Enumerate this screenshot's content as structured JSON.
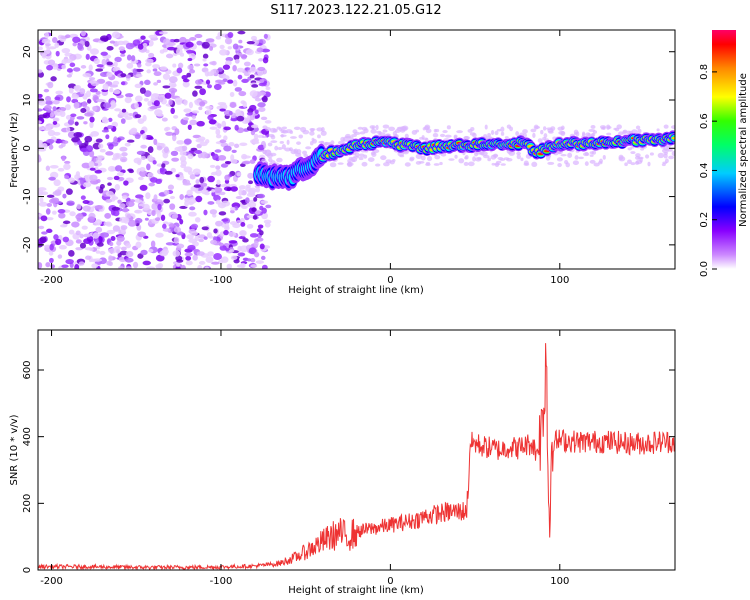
{
  "chart_data": [
    {
      "type": "heatmap",
      "title": "S117.2023.122.21.05.G12",
      "xlabel": "Height of straight line (km)",
      "ylabel": "Frequency (Hz)",
      "xlim": [
        -208,
        168
      ],
      "ylim": [
        -25,
        24.5
      ],
      "x_ticks": [
        -200,
        -100,
        0,
        100
      ],
      "y_ticks": [
        -20,
        -10,
        0,
        10,
        20
      ],
      "colorbar": {
        "label": "Normalized spectral amplitude",
        "range": [
          0,
          0.97
        ],
        "ticks": [
          "0.0",
          "0.2",
          "0.4",
          "0.6",
          "0.8"
        ],
        "colormap": [
          "#ffffff",
          "#9900ff",
          "#0000ff",
          "#00ffff",
          "#00ff00",
          "#ffff00",
          "#ff0000",
          "#ff0066"
        ]
      },
      "description_points": {
        "noise_region_x": [
          -208,
          -78
        ],
        "noise_frequency_range": [
          -25,
          24
        ],
        "signal_track": [
          [
            -78,
            -5
          ],
          [
            -70,
            -6
          ],
          [
            -60,
            -6
          ],
          [
            -50,
            -4
          ],
          [
            -40,
            -1.5
          ],
          [
            -30,
            -0.5
          ],
          [
            -20,
            0.5
          ],
          [
            -10,
            1
          ],
          [
            0,
            1
          ],
          [
            20,
            0
          ],
          [
            40,
            0.5
          ],
          [
            60,
            1
          ],
          [
            80,
            1
          ],
          [
            86,
            -1
          ],
          [
            100,
            1
          ],
          [
            120,
            1
          ],
          [
            140,
            1.5
          ],
          [
            160,
            2
          ],
          [
            168,
            2
          ]
        ]
      }
    },
    {
      "type": "line",
      "xlabel": "Height of straight line (km)",
      "ylabel": "SNR (10 * v/v)",
      "xlim": [
        -208,
        168
      ],
      "ylim": [
        0,
        720
      ],
      "x_ticks": [
        -200,
        -100,
        0,
        100
      ],
      "y_ticks": [
        0,
        200,
        400,
        600
      ],
      "series": [
        {
          "color": "#ee3333",
          "x": [
            -208,
            -180,
            -150,
            -120,
            -100,
            -80,
            -65,
            -55,
            -45,
            -35,
            -30,
            -25,
            -20,
            -15,
            -10,
            -5,
            0,
            5,
            10,
            15,
            20,
            25,
            30,
            35,
            40,
            45,
            46,
            47,
            50,
            55,
            60,
            65,
            70,
            75,
            80,
            84,
            86,
            88,
            90,
            91,
            92,
            93,
            94,
            95,
            96,
            98,
            100,
            110,
            120,
            130,
            140,
            150,
            160,
            168
          ],
          "y": [
            10,
            10,
            8,
            8,
            9,
            12,
            20,
            40,
            70,
            100,
            110,
            100,
            115,
            120,
            125,
            130,
            135,
            140,
            145,
            150,
            160,
            165,
            170,
            175,
            175,
            178,
            250,
            380,
            380,
            370,
            365,
            360,
            370,
            365,
            375,
            380,
            350,
            380,
            450,
            550,
            700,
            300,
            120,
            370,
            390,
            385,
            390,
            385,
            385,
            385,
            380,
            380,
            385,
            385
          ]
        }
      ]
    }
  ]
}
